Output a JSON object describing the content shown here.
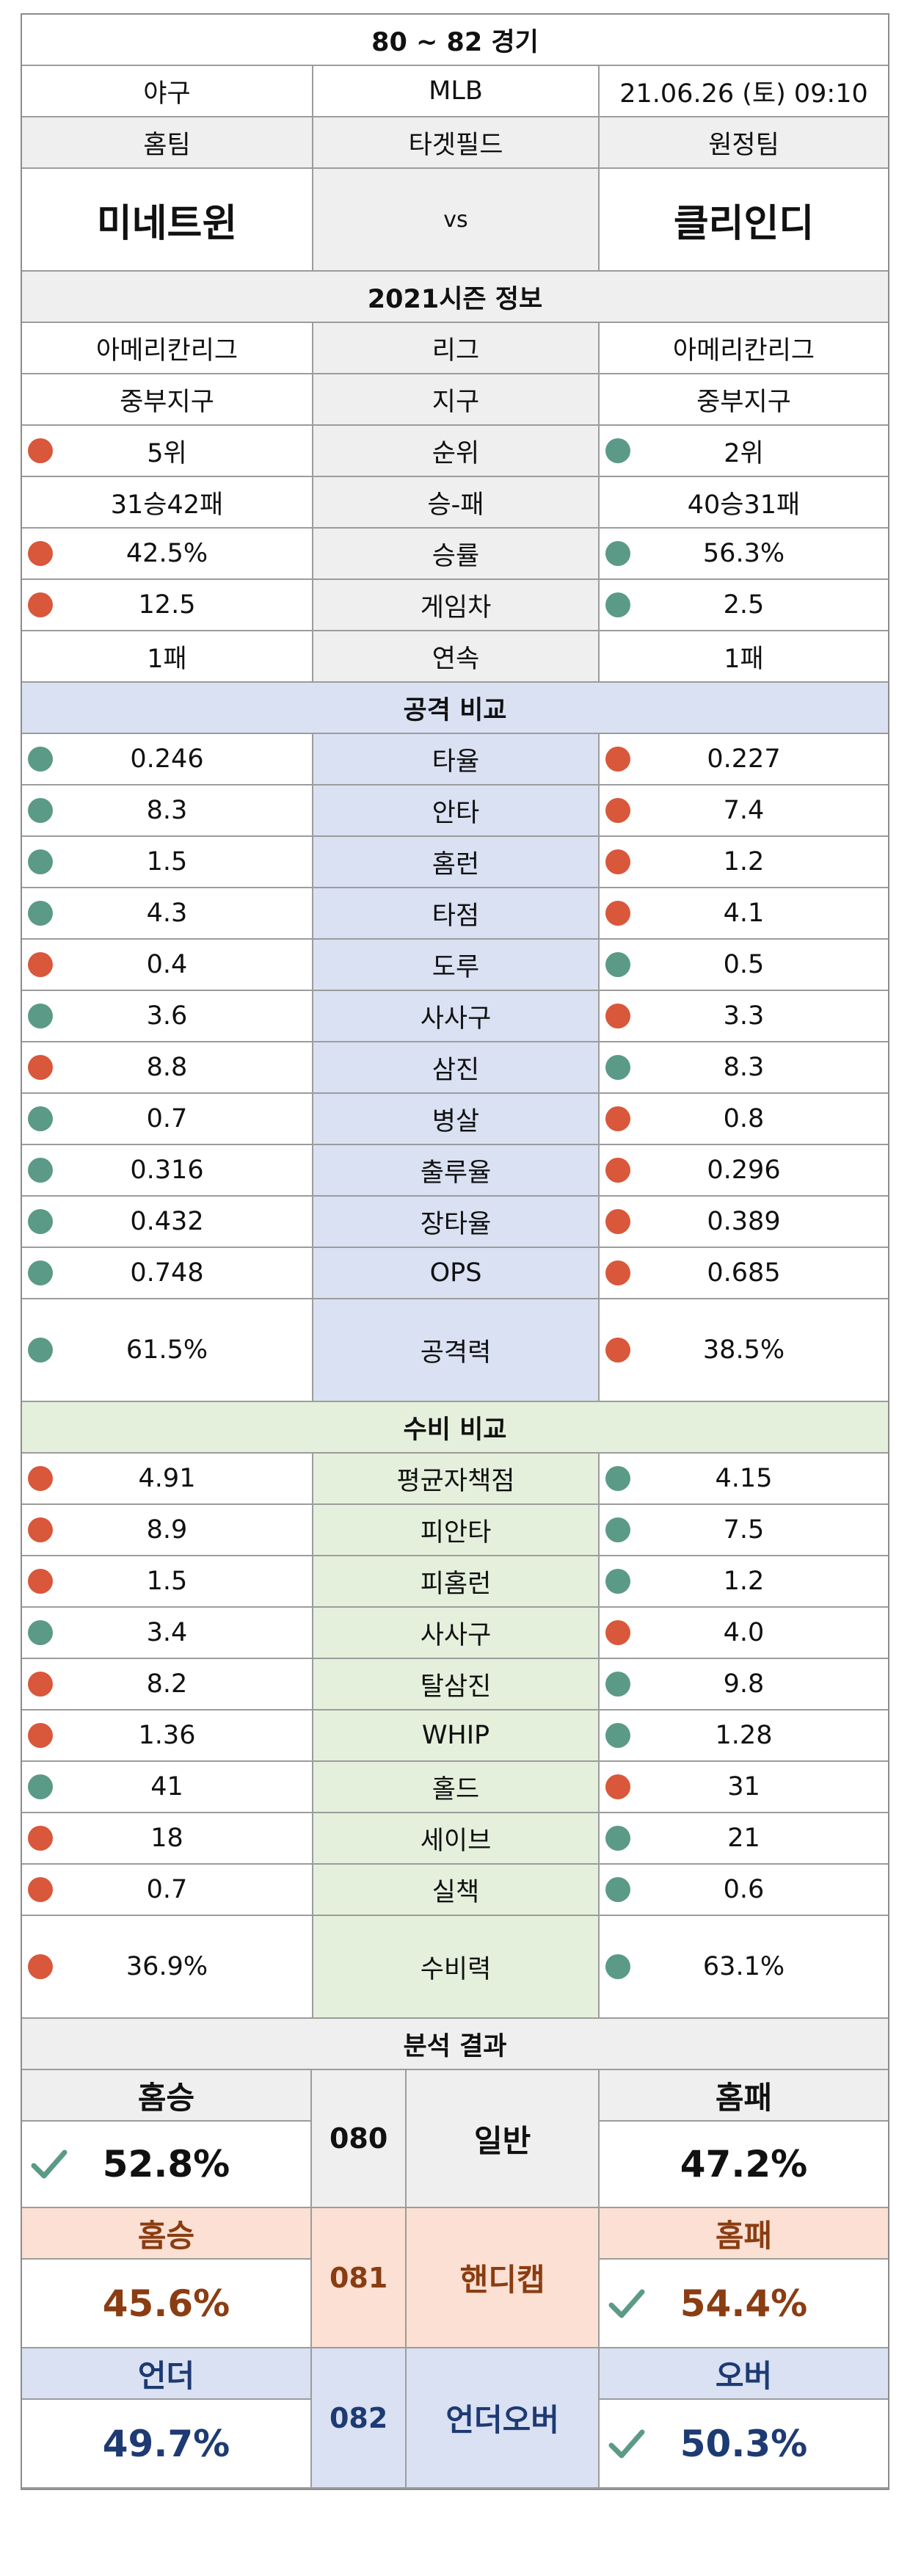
{
  "title": "80 ~ 82 경기",
  "info": {
    "sport": "야구",
    "league": "MLB",
    "datetime": "21.06.26 (토) 09:10"
  },
  "teams_header": {
    "home": "홈팀",
    "mid": "타겟필드",
    "away": "원정팀"
  },
  "teams": {
    "home": "미네트윈",
    "vs": "vs",
    "away": "클리인디"
  },
  "season_title": "2021시즌 정보",
  "season_rows": [
    {
      "label": "리그",
      "home": "아메리칸리그",
      "away": "아메리칸리그",
      "home_dot": "",
      "away_dot": ""
    },
    {
      "label": "지구",
      "home": "중부지구",
      "away": "중부지구",
      "home_dot": "",
      "away_dot": ""
    },
    {
      "label": "순위",
      "home": "5위",
      "away": "2위",
      "home_dot": "red",
      "away_dot": "green"
    },
    {
      "label": "승-패",
      "home": "31승42패",
      "away": "40승31패",
      "home_dot": "",
      "away_dot": ""
    },
    {
      "label": "승률",
      "home": "42.5%",
      "away": "56.3%",
      "home_dot": "red",
      "away_dot": "green"
    },
    {
      "label": "게임차",
      "home": "12.5",
      "away": "2.5",
      "home_dot": "red",
      "away_dot": "green"
    },
    {
      "label": "연속",
      "home": "1패",
      "away": "1패",
      "home_dot": "",
      "away_dot": ""
    }
  ],
  "attack_title": "공격 비교",
  "attack_rows": [
    {
      "label": "타율",
      "home": "0.246",
      "away": "0.227",
      "home_dot": "green",
      "away_dot": "red"
    },
    {
      "label": "안타",
      "home": "8.3",
      "away": "7.4",
      "home_dot": "green",
      "away_dot": "red"
    },
    {
      "label": "홈런",
      "home": "1.5",
      "away": "1.2",
      "home_dot": "green",
      "away_dot": "red"
    },
    {
      "label": "타점",
      "home": "4.3",
      "away": "4.1",
      "home_dot": "green",
      "away_dot": "red"
    },
    {
      "label": "도루",
      "home": "0.4",
      "away": "0.5",
      "home_dot": "red",
      "away_dot": "green"
    },
    {
      "label": "사사구",
      "home": "3.6",
      "away": "3.3",
      "home_dot": "green",
      "away_dot": "red"
    },
    {
      "label": "삼진",
      "home": "8.8",
      "away": "8.3",
      "home_dot": "red",
      "away_dot": "green"
    },
    {
      "label": "병살",
      "home": "0.7",
      "away": "0.8",
      "home_dot": "green",
      "away_dot": "red"
    },
    {
      "label": "출루율",
      "home": "0.316",
      "away": "0.296",
      "home_dot": "green",
      "away_dot": "red"
    },
    {
      "label": "장타율",
      "home": "0.432",
      "away": "0.389",
      "home_dot": "green",
      "away_dot": "red"
    },
    {
      "label": "OPS",
      "home": "0.748",
      "away": "0.685",
      "home_dot": "green",
      "away_dot": "red"
    },
    {
      "label": "공격력",
      "home": "61.5%",
      "away": "38.5%",
      "home_dot": "green",
      "away_dot": "red",
      "tall": true
    }
  ],
  "defense_title": "수비 비교",
  "defense_rows": [
    {
      "label": "평균자책점",
      "home": "4.91",
      "away": "4.15",
      "home_dot": "red",
      "away_dot": "green"
    },
    {
      "label": "피안타",
      "home": "8.9",
      "away": "7.5",
      "home_dot": "red",
      "away_dot": "green"
    },
    {
      "label": "피홈런",
      "home": "1.5",
      "away": "1.2",
      "home_dot": "red",
      "away_dot": "green"
    },
    {
      "label": "사사구",
      "home": "3.4",
      "away": "4.0",
      "home_dot": "green",
      "away_dot": "red"
    },
    {
      "label": "탈삼진",
      "home": "8.2",
      "away": "9.8",
      "home_dot": "red",
      "away_dot": "green"
    },
    {
      "label": "WHIP",
      "home": "1.36",
      "away": "1.28",
      "home_dot": "red",
      "away_dot": "green"
    },
    {
      "label": "홀드",
      "home": "41",
      "away": "31",
      "home_dot": "green",
      "away_dot": "red"
    },
    {
      "label": "세이브",
      "home": "18",
      "away": "21",
      "home_dot": "red",
      "away_dot": "green"
    },
    {
      "label": "실책",
      "home": "0.7",
      "away": "0.6",
      "home_dot": "red",
      "away_dot": "green"
    },
    {
      "label": "수비력",
      "home": "36.9%",
      "away": "63.1%",
      "home_dot": "red",
      "away_dot": "green",
      "tall": true
    }
  ],
  "analysis_title": "분석 결과",
  "analysis": [
    {
      "theme": "normal",
      "left_head": "홈승",
      "left_val": "52.8%",
      "num": "080",
      "label": "일반",
      "right_head": "홈패",
      "right_val": "47.2%",
      "check": "left"
    },
    {
      "theme": "hc",
      "left_head": "홈승",
      "left_val": "45.6%",
      "num": "081",
      "label": "핸디캡",
      "right_head": "홈패",
      "right_val": "54.4%",
      "check": "right"
    },
    {
      "theme": "uo",
      "left_head": "언더",
      "left_val": "49.7%",
      "num": "082",
      "label": "언더오버",
      "right_head": "오버",
      "right_val": "50.3%",
      "check": "right"
    }
  ],
  "colors": {
    "dot_red": "#d9573b",
    "dot_green": "#5b9a87",
    "check_green": "#5b9a87",
    "attack_band": "#d9e1f3",
    "defense_band": "#e5f0dc",
    "handicap_band": "#fbe0d3"
  }
}
